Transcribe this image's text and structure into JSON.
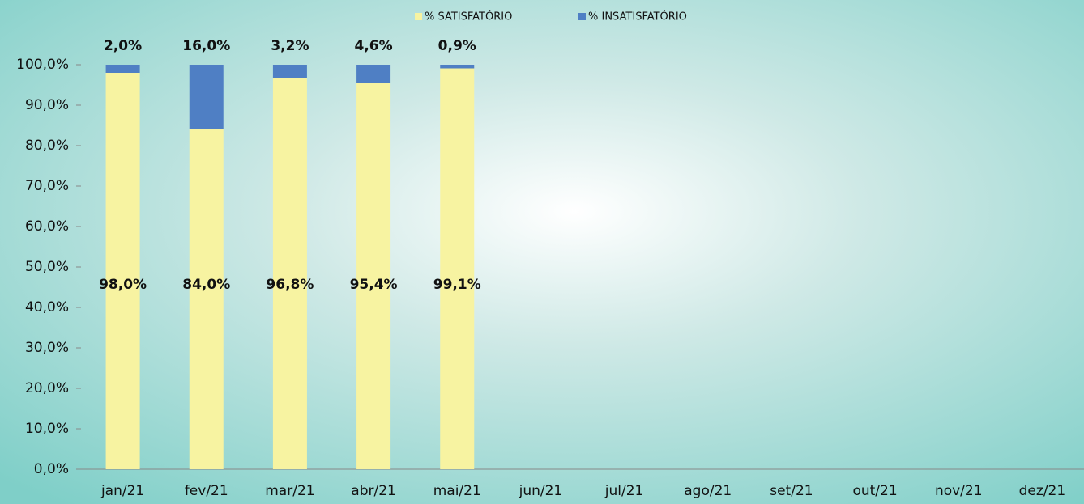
{
  "chart_data": {
    "type": "stacked_bar",
    "categories": [
      "jan/21",
      "fev/21",
      "mar/21",
      "abr/21",
      "mai/21",
      "jun/21",
      "jul/21",
      "ago/21",
      "set/21",
      "out/21",
      "nov/21",
      "dez/21"
    ],
    "series": [
      {
        "name": "% SATISFATÓRIO",
        "color": "#f7f3a1",
        "values": [
          98.0,
          84.0,
          96.8,
          95.4,
          99.1,
          null,
          null,
          null,
          null,
          null,
          null,
          null
        ],
        "value_labels": [
          "98,0%",
          "84,0%",
          "96,8%",
          "95,4%",
          "99,1%",
          null,
          null,
          null,
          null,
          null,
          null,
          null
        ]
      },
      {
        "name": "% INSATISFATÓRIO",
        "color": "#4f7fc4",
        "values": [
          2.0,
          16.0,
          3.2,
          4.6,
          0.9,
          null,
          null,
          null,
          null,
          null,
          null,
          null
        ],
        "value_labels": [
          "2,0%",
          "16,0%",
          "3,2%",
          "4,6%",
          "0,9%",
          null,
          null,
          null,
          null,
          null,
          null,
          null
        ]
      }
    ],
    "ylim": [
      0,
      100
    ],
    "yticks": [
      {
        "value": 0,
        "label": "0,0%"
      },
      {
        "value": 10,
        "label": "10,0%"
      },
      {
        "value": 20,
        "label": "20,0%"
      },
      {
        "value": 30,
        "label": "30,0%"
      },
      {
        "value": 40,
        "label": "40,0%"
      },
      {
        "value": 50,
        "label": "50,0%"
      },
      {
        "value": 60,
        "label": "60,0%"
      },
      {
        "value": 70,
        "label": "70,0%"
      },
      {
        "value": 80,
        "label": "80,0%"
      },
      {
        "value": 90,
        "label": "90,0%"
      },
      {
        "value": 100,
        "label": "100,0%"
      }
    ],
    "grid": false
  }
}
